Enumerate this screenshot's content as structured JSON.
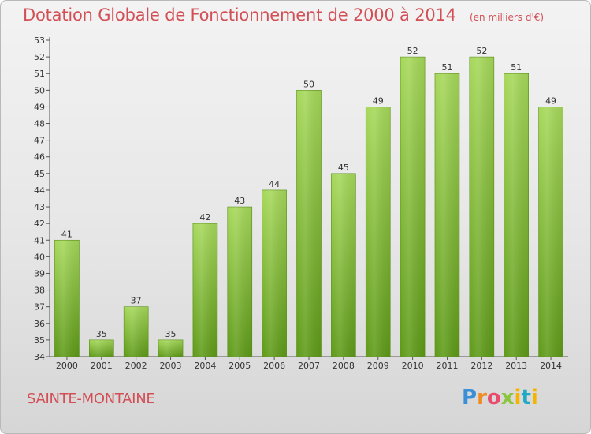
{
  "header": {
    "title": "Dotation Globale de Fonctionnement de 2000 à 2014",
    "unit": "(en milliers d'€)"
  },
  "footer": {
    "town": "SAINTE-MONTAINE",
    "logo_text": "Proxiti"
  },
  "colors": {
    "title": "#d24f56",
    "bar_top": "#a6d85a",
    "bar_bottom": "#5e9a18"
  },
  "chart_data": {
    "type": "bar",
    "title": "Dotation Globale de Fonctionnement de 2000 à 2014",
    "subtitle": "(en milliers d'€)",
    "xlabel": "",
    "ylabel": "",
    "categories": [
      "2000",
      "2001",
      "2002",
      "2003",
      "2004",
      "2005",
      "2006",
      "2007",
      "2008",
      "2009",
      "2010",
      "2011",
      "2012",
      "2013",
      "2014"
    ],
    "values": [
      41,
      35,
      37,
      35,
      42,
      43,
      44,
      50,
      45,
      49,
      52,
      51,
      52,
      51,
      49
    ],
    "ylim": [
      34,
      53
    ],
    "yticks": [
      34,
      35,
      36,
      37,
      38,
      39,
      40,
      41,
      42,
      43,
      44,
      45,
      46,
      47,
      48,
      49,
      50,
      51,
      52,
      53
    ],
    "grid": false,
    "legend": "none",
    "data_labels": true
  }
}
